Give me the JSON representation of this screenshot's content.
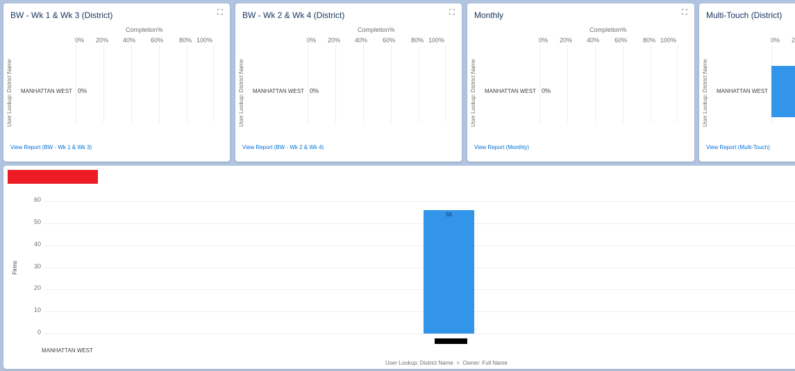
{
  "cards": [
    {
      "title": "BW - Wk 1 & Wk 3 (District)",
      "link": "View Report (BW - Wk 1 & Wk 3)"
    },
    {
      "title": "BW - Wk 2 & Wk 4 (District)",
      "link": "View Report (BW - Wk 2 & Wk 4)"
    },
    {
      "title": "Monthly",
      "link": "View Report (Monthly)"
    },
    {
      "title": "Multi-Touch (District)",
      "link": "View Report (Multi-Touch)"
    }
  ],
  "small_chart": {
    "x_title": "Completion%",
    "ticks": [
      "0%",
      "20%",
      "40%",
      "60%",
      "80%",
      "100%"
    ],
    "y_title": "User Lookup: District Name",
    "category": "MANHATTAN WEST",
    "value_label": "0%"
  },
  "icons": {
    "expand": "expand-icon"
  },
  "colors": {
    "bar": "#3295ea",
    "redacted_red": "#ed1c24",
    "redacted_black": "#000000",
    "link": "#0070d2"
  },
  "chart_data": [
    {
      "type": "bar",
      "title": "BW - Wk 1 & Wk 3 (District)",
      "orientation": "horizontal",
      "categories": [
        "MANHATTAN WEST"
      ],
      "values": [
        0
      ],
      "xlabel": "Completion%",
      "ylabel": "User Lookup: District Name",
      "xlim": [
        0,
        100
      ]
    },
    {
      "type": "bar",
      "title": "BW - Wk 2 & Wk 4 (District)",
      "orientation": "horizontal",
      "categories": [
        "MANHATTAN WEST"
      ],
      "values": [
        0
      ],
      "xlabel": "Completion%",
      "ylabel": "User Lookup: District Name",
      "xlim": [
        0,
        100
      ]
    },
    {
      "type": "bar",
      "title": "Monthly",
      "orientation": "horizontal",
      "categories": [
        "MANHATTAN WEST"
      ],
      "values": [
        0
      ],
      "xlabel": "Completion%",
      "ylabel": "User Lookup: District Name",
      "xlim": [
        0,
        100
      ]
    },
    {
      "type": "bar",
      "title": "Multi-Touch (District)",
      "orientation": "horizontal",
      "categories": [
        "MANHATTAN WEST"
      ],
      "values": [
        100
      ],
      "xlabel": "Completion%",
      "ylabel": "User Lookup: District Name",
      "xlim": [
        0,
        100
      ]
    },
    {
      "type": "bar",
      "title": "",
      "categories": [
        "MANHATTAN WEST"
      ],
      "values": [
        56
      ],
      "data_labels": [
        "56"
      ],
      "ylabel": "Firms",
      "xlabel": "User Lookup: District Name  >  Owner: Full Name",
      "ylim": [
        0,
        60
      ],
      "yticks": [
        0,
        10,
        20,
        30,
        40,
        50,
        60
      ]
    }
  ]
}
